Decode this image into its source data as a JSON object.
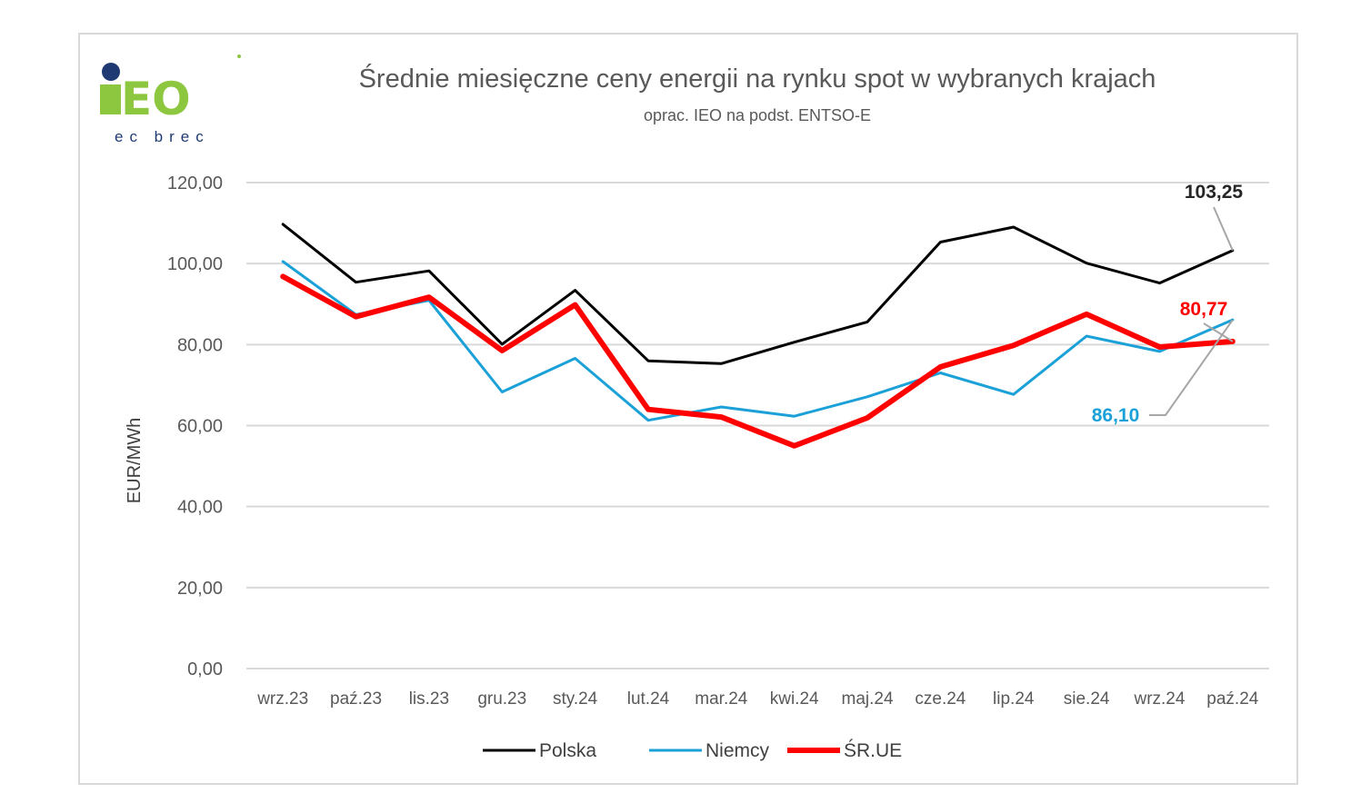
{
  "logo": {
    "mark": "iEO",
    "sub": "ec brec",
    "colors": {
      "green": "#8dc63f",
      "navy": "#1f3a73",
      "sub": "#1f3a73"
    }
  },
  "chart_data": {
    "type": "line",
    "title": "Średnie miesięczne ceny energii na rynku spot w wybranych krajach",
    "subtitle": "oprac. IEO na podst. ENTSO-E",
    "xlabel": "",
    "ylabel": "EUR/MWh",
    "ylim": [
      0,
      120
    ],
    "yticks": [
      "0,00",
      "20,00",
      "40,00",
      "60,00",
      "80,00",
      "100,00",
      "120,00"
    ],
    "ytick_values": [
      0,
      20,
      40,
      60,
      80,
      100,
      120
    ],
    "grid": true,
    "legend_position": "bottom",
    "categories": [
      "wrz.23",
      "paź.23",
      "lis.23",
      "gru.23",
      "sty.24",
      "lut.24",
      "mar.24",
      "kwi.24",
      "maj.24",
      "cze.24",
      "lip.24",
      "sie.24",
      "wrz.24",
      "paź.24"
    ],
    "series": [
      {
        "name": "Polska",
        "color": "#000000",
        "width": 3,
        "values": [
          109.7,
          95.4,
          98.2,
          80.1,
          93.4,
          76.0,
          75.3,
          80.6,
          85.6,
          105.3,
          109.0,
          100.1,
          95.2,
          103.25
        ]
      },
      {
        "name": "Niemcy",
        "color": "#1ba1d8",
        "width": 3,
        "values": [
          100.5,
          87.4,
          90.9,
          68.3,
          76.6,
          61.3,
          64.6,
          62.3,
          67.1,
          73.0,
          67.7,
          82.1,
          78.3,
          86.1
        ]
      },
      {
        "name": "ŚR.UE",
        "color": "#ff0000",
        "width": 6,
        "values": [
          96.8,
          86.9,
          91.7,
          78.5,
          89.8,
          64.0,
          62.1,
          55.0,
          61.9,
          74.5,
          79.8,
          87.5,
          79.4,
          80.77
        ]
      }
    ],
    "annotations": [
      {
        "text": "103,25",
        "series": 0,
        "color": "#262626"
      },
      {
        "text": "80,77",
        "series": 2,
        "color": "#ff0000"
      },
      {
        "text": "86,10",
        "series": 1,
        "color": "#1ba1d8"
      }
    ]
  }
}
